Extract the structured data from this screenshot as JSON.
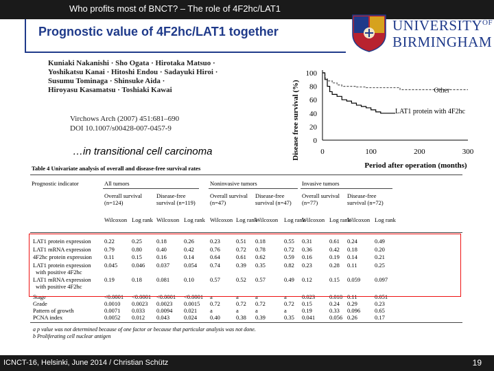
{
  "header": {
    "title": "Who profits most of BNCT? – The role of 4F2hc/LAT1"
  },
  "slide": {
    "title": "Prognostic value of 4F2hc/LAT1 together",
    "caption": "…in transitional cell carcinoma",
    "authors": [
      "Kuniaki Nakanishi · Sho Ogata · Hirotaka Matsuo ·",
      "Yoshikatsu Kanai · Hitoshi Endou · Sadayuki Hiroi ·",
      "Susumu Tominaga · Shinsuke Aida ·",
      "Hiroyasu Kasamatsu · Toshiaki Kawai"
    ],
    "citation": [
      "Virchows Arch (2007) 451:681–690",
      "DOI 10.1007/s00428-007-0457-9"
    ]
  },
  "logo": {
    "line1": "UNIVERSITY",
    "line1_sup": "OF",
    "line2": "BIRMINGHAM",
    "brand_color": "#1f3a8a"
  },
  "chart_data": {
    "type": "line",
    "ylabel": "Disease free survival (%)",
    "xlabel": "Period after operation (months)",
    "x_ticks": [
      0,
      100,
      200,
      300
    ],
    "y_ticks": [
      0,
      20,
      40,
      60,
      80,
      100
    ],
    "xlim": [
      0,
      300
    ],
    "ylim": [
      0,
      100
    ],
    "series": [
      {
        "name": "Other",
        "style": "dashed",
        "x": [
          0,
          5,
          10,
          20,
          30,
          40,
          55,
          70,
          90,
          120,
          160,
          200,
          250,
          300
        ],
        "y": [
          100,
          92,
          88,
          85,
          82,
          80,
          80,
          79,
          78,
          78,
          75,
          75,
          75,
          75
        ]
      },
      {
        "name": "LAT1 protein with 4F2hc",
        "style": "solid",
        "x": [
          0,
          5,
          10,
          15,
          20,
          30,
          40,
          50,
          60,
          70,
          80,
          90,
          100,
          110,
          120,
          150
        ],
        "y": [
          100,
          90,
          80,
          72,
          68,
          65,
          60,
          58,
          55,
          52,
          50,
          48,
          45,
          42,
          40,
          40
        ]
      }
    ]
  },
  "table": {
    "title": "Table 4  Univariate analysis of overall and disease-free survival rates",
    "group_headers": [
      "Prognostic indicator",
      "All tumors",
      "Noninvasive tumors",
      "Invasive tumors"
    ],
    "sub_headers": [
      "Overall survival (n=124)",
      "Disease-free survival (n=119)",
      "Overall survival (n=47)",
      "Disease-free survival (n=47)",
      "Overall survival (n=77)",
      "Disease-free survival (n=72)"
    ],
    "test_headers": [
      "Wilcoxon",
      "Log rank",
      "Wilcoxon",
      "Log rank",
      "Wilcoxon",
      "Log rank",
      "Wilcoxon",
      "Log rank",
      "Wilcoxon",
      "Log rank",
      "Wilcoxon",
      "Log rank"
    ],
    "rows": [
      {
        "label": "LAT1 protein expression",
        "values": [
          "0.22",
          "0.25",
          "0.18",
          "0.26",
          "0.23",
          "0.51",
          "0.18",
          "0.55",
          "0.31",
          "0.61",
          "0.24",
          "0.49"
        ]
      },
      {
        "label": "LAT1 mRNA expression",
        "values": [
          "0.79",
          "0.80",
          "0.40",
          "0.42",
          "0.76",
          "0.72",
          "0.78",
          "0.72",
          "0.36",
          "0.42",
          "0.18",
          "0.20"
        ]
      },
      {
        "label": "4F2hc protein expression",
        "values": [
          "0.11",
          "0.15",
          "0.16",
          "0.14",
          "0.64",
          "0.61",
          "0.62",
          "0.59",
          "0.16",
          "0.19",
          "0.14",
          "0.21"
        ]
      },
      {
        "label": "LAT1 protein expression",
        "label2": "with positive 4F2hc",
        "values": [
          "0.045",
          "0.046",
          "0.037",
          "0.054",
          "0.74",
          "0.39",
          "0.35",
          "0.82",
          "0.23",
          "0.28",
          "0.11",
          "0.25"
        ]
      },
      {
        "label": "LAT1 mRNA expression",
        "label2": "with positive 4F2hc",
        "values": [
          "0.19",
          "0.18",
          "0.081",
          "0.10",
          "0.57",
          "0.52",
          "0.57",
          "0.49",
          "0.12",
          "0.15",
          "0.059",
          "0.097"
        ]
      },
      {
        "label": "Stage",
        "values": [
          "<0.0001",
          "<0.0001",
          "<0.0001",
          "<0.0001",
          "a",
          "a",
          "a",
          "a",
          "0.023",
          "0.018",
          "0.11",
          "0.051"
        ]
      },
      {
        "label": "Grade",
        "values": [
          "0.0010",
          "0.0023",
          "0.0023",
          "0.0015",
          "0.72",
          "0.72",
          "0.72",
          "0.72",
          "0.15",
          "0.24",
          "0.29",
          "0.23"
        ]
      },
      {
        "label": "Pattern of growth",
        "values": [
          "0.0071",
          "0.033",
          "0.0094",
          "0.021",
          "a",
          "a",
          "a",
          "a",
          "0.19",
          "0.33",
          "0.096",
          "0.65"
        ]
      },
      {
        "label": "PCNA index",
        "values": [
          "0.0052",
          "0.012",
          "0.043",
          "0.024",
          "0.40",
          "0.38",
          "0.39",
          "0.35",
          "0.041",
          "0.056",
          "0.26",
          "0.17"
        ]
      }
    ],
    "footnotes": [
      "a p value was not determined because of one factor or because that particular analysis was not done.",
      "b Proliferating cell nuclear antigen"
    ]
  },
  "footer": {
    "left": "ICNCT-16, Helsinki, June 2014  /  Christian Schütz",
    "page": "19"
  }
}
